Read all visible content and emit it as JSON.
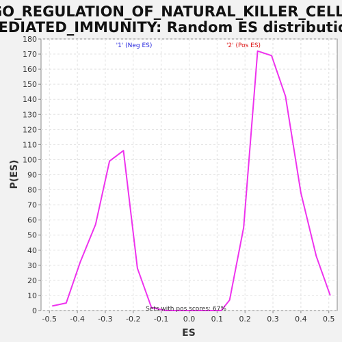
{
  "chart_data": {
    "type": "line",
    "title_line1": "GO_REGULATION_OF_NATURAL_KILLER_CELL_",
    "title_line2": "MEDIATED_IMMUNITY: Random ES distribution",
    "xlabel": "ES",
    "ylabel": "P(ES)",
    "xlim": [
      -0.53,
      0.53
    ],
    "ylim": [
      0,
      180
    ],
    "x_ticks": [
      -0.5,
      -0.4,
      -0.3,
      -0.2,
      -0.1,
      0.0,
      0.1,
      0.2,
      0.3,
      0.4,
      0.5
    ],
    "x_tick_labels": [
      "-0.5",
      "-0.4",
      "-0.3",
      "-0.2",
      "-0.1",
      "0.0",
      "0.1",
      "0.2",
      "0.3",
      "0.4",
      "0.5"
    ],
    "y_ticks": [
      0,
      10,
      20,
      30,
      40,
      50,
      60,
      70,
      80,
      90,
      100,
      110,
      120,
      130,
      140,
      150,
      160,
      170,
      180
    ],
    "y_tick_labels": [
      "0",
      "10",
      "20",
      "30",
      "40",
      "50",
      "60",
      "70",
      "80",
      "90",
      "100",
      "110",
      "120",
      "130",
      "140",
      "150",
      "160",
      "170",
      "180"
    ],
    "grid": true,
    "series": [
      {
        "color": "#ee33ee",
        "points": [
          [
            -0.49,
            3
          ],
          [
            -0.44,
            5
          ],
          [
            -0.39,
            32
          ],
          [
            -0.335,
            57
          ],
          [
            -0.285,
            99
          ],
          [
            -0.235,
            106
          ],
          [
            -0.185,
            28
          ],
          [
            -0.135,
            2
          ],
          [
            -0.085,
            0
          ],
          [
            -0.035,
            0
          ],
          [
            0.015,
            0
          ],
          [
            0.065,
            0
          ],
          [
            0.115,
            0
          ],
          [
            0.145,
            7
          ],
          [
            0.195,
            55
          ],
          [
            0.245,
            172
          ],
          [
            0.295,
            169
          ],
          [
            0.345,
            142
          ],
          [
            0.4,
            78
          ],
          [
            0.455,
            36
          ],
          [
            0.505,
            10
          ]
        ]
      }
    ],
    "annotations": {
      "neg_label": "'1' (Neg ES)",
      "neg_color": "#2222dd",
      "pos_label": "'2' (Pos ES)",
      "pos_color": "#dd1111",
      "footer": "Sets with pos scores: 67%"
    }
  }
}
